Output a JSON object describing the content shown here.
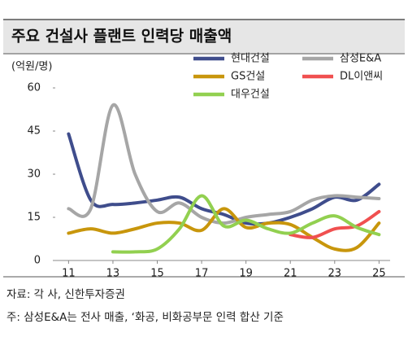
{
  "chart_data": {
    "type": "line",
    "title": "주요 건설사 플랜트 인력당 매출액",
    "y_label": "(억원/명)",
    "x": [
      11,
      12,
      13,
      14,
      15,
      16,
      17,
      18,
      19,
      20,
      21,
      22,
      23,
      24,
      25
    ],
    "xlim": [
      10.4,
      25.5
    ],
    "xticks": [
      11,
      13,
      15,
      17,
      19,
      21,
      23,
      25
    ],
    "ylim": [
      0,
      60
    ],
    "yticks": [
      0,
      15,
      30,
      45,
      60
    ],
    "smooth": true,
    "series": [
      {
        "name": "현대건설",
        "color": "#3f4d8c",
        "values": [
          44,
          21,
          19.5,
          20,
          21,
          22,
          18,
          16,
          13,
          13,
          15,
          18,
          22,
          21,
          26.5
        ]
      },
      {
        "name": "삼성E&A",
        "color": "#a6a6a6",
        "values": [
          18,
          18,
          54,
          30,
          17,
          20,
          15,
          13,
          15,
          16,
          17,
          21,
          22.5,
          22,
          21.5
        ]
      },
      {
        "name": "GS건설",
        "color": "#c8960c",
        "values": [
          9.5,
          11,
          9.5,
          11,
          13,
          13,
          10.5,
          18,
          11.5,
          13,
          12.5,
          8,
          4,
          4.5,
          13
        ]
      },
      {
        "name": "DL이앤씨",
        "color": "#f05050",
        "values": [
          null,
          null,
          null,
          null,
          null,
          null,
          null,
          null,
          null,
          null,
          9,
          8,
          11,
          12,
          17
        ]
      },
      {
        "name": "대우건설",
        "color": "#92d050",
        "values": [
          null,
          null,
          3,
          3,
          4,
          11,
          22.5,
          12,
          14,
          11,
          9.5,
          13,
          15.5,
          11.5,
          9
        ]
      }
    ],
    "notes": [
      "자료: 각 사, 신한투자증권",
      "주: 삼성E&A는 전사 매출, ‘화공, 비화공부문 인력 합산 기준"
    ]
  }
}
